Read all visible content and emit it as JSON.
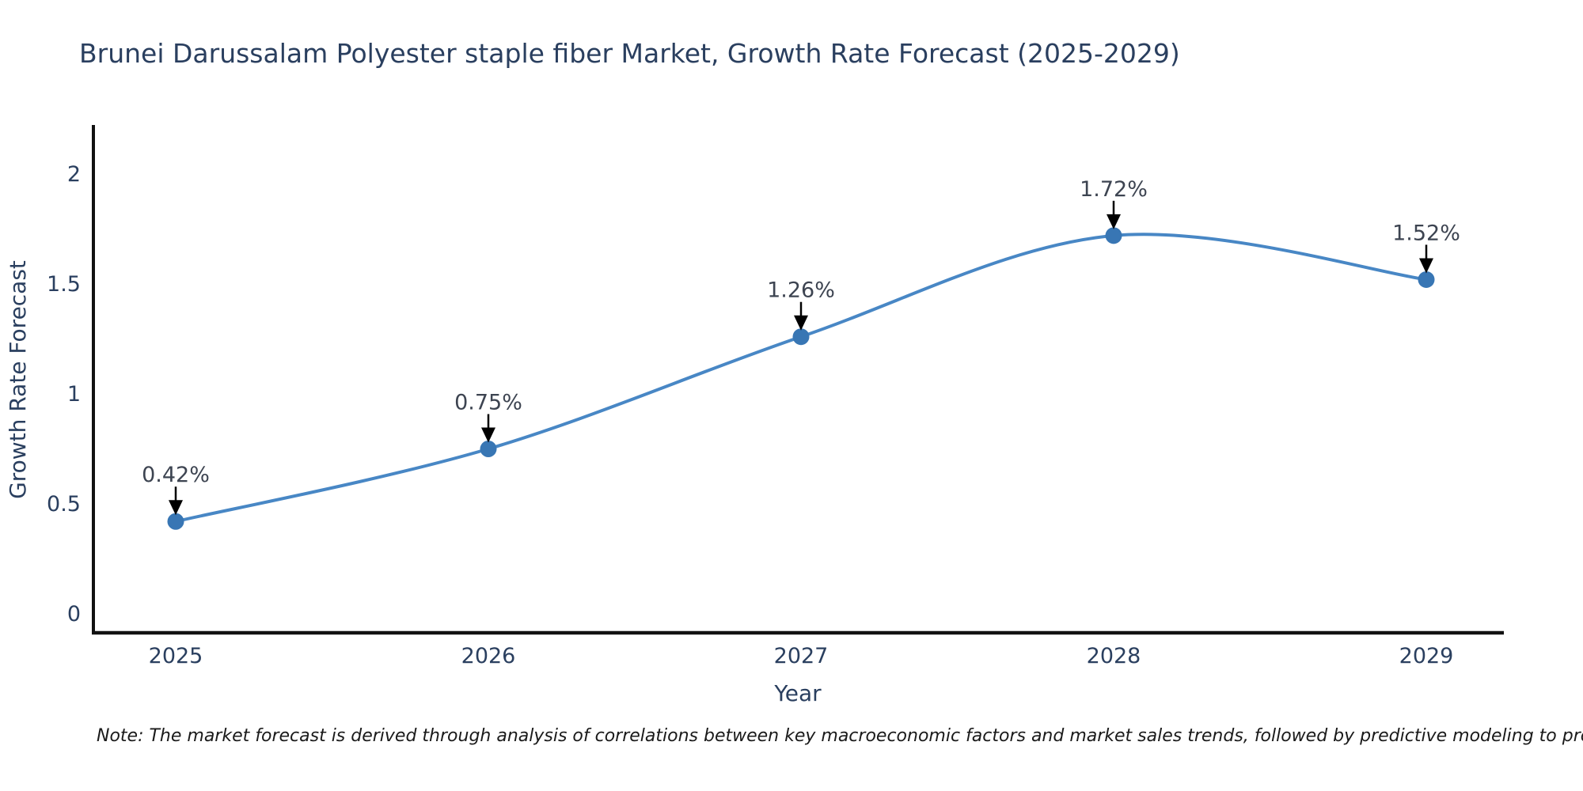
{
  "title": "Brunei Darussalam Polyester staple fiber Market, Growth Rate Forecast (2025-2029)",
  "note": "Note: The market forecast is derived through analysis of correlations between key macroeconomic factors and market sales trends, followed by predictive modeling to project future sales",
  "chart_data": {
    "type": "line",
    "line_shape": "spline",
    "title": "Brunei Darussalam Polyester staple fiber Market, Growth Rate Forecast (2025-2029)",
    "categories": [
      "2025",
      "2026",
      "2027",
      "2028",
      "2029"
    ],
    "series": [
      {
        "name": "Growth Rate Forecast",
        "values": [
          0.42,
          0.75,
          1.26,
          1.72,
          1.52
        ],
        "point_labels": [
          "0.42%",
          "0.75%",
          "1.26%",
          "1.72%",
          "1.52%"
        ]
      }
    ],
    "xlabel": "Year",
    "ylabel": "Growth Rate Forecast",
    "yticks": [
      0,
      0.5,
      1,
      1.5,
      2
    ],
    "ylim": [
      -0.09,
      2.23
    ],
    "grid": false,
    "legend": false,
    "markers": true,
    "annotations_arrows": true,
    "colors": {
      "line": "#4887c5",
      "marker": "#3876b4",
      "axis": "#111111",
      "tick_text": "#2a3f5f",
      "title_text": "#2a3f5f",
      "annotation_text": "#3d4451",
      "arrow": "#000000",
      "background": "#ffffff"
    }
  }
}
